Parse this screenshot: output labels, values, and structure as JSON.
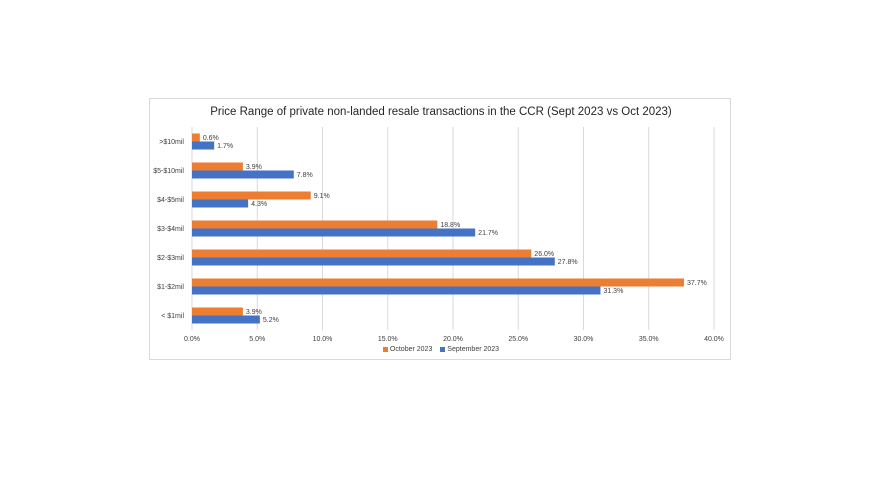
{
  "chart_data": {
    "type": "bar",
    "orientation": "horizontal",
    "title": "Price Range of private non-landed resale transactions in the CCR (Sept 2023 vs Oct 2023)",
    "categories": [
      ">$10mil",
      "$5-$10mil",
      "$4-$5mil",
      "$3-$4mil",
      "$2-$3mil",
      "$1-$2mil",
      "< $1mil"
    ],
    "series": [
      {
        "name": "October 2023",
        "color": "#ed7d31",
        "values": [
          0.6,
          3.9,
          9.1,
          18.8,
          26.0,
          37.7,
          3.9
        ],
        "labels": [
          "0.6%",
          "3.9%",
          "9.1%",
          "18.8%",
          "26.0%",
          "37.7%",
          "3.9%"
        ]
      },
      {
        "name": "September 2023",
        "color": "#4472c4",
        "values": [
          1.7,
          7.8,
          4.3,
          21.7,
          27.8,
          31.3,
          5.2
        ],
        "labels": [
          "1.7%",
          "7.8%",
          "4.3%",
          "21.7%",
          "27.8%",
          "31.3%",
          "5.2%"
        ]
      }
    ],
    "xlim": [
      0,
      40
    ],
    "xticks": [
      "0.0%",
      "5.0%",
      "10.0%",
      "15.0%",
      "20.0%",
      "25.0%",
      "30.0%",
      "35.0%",
      "40.0%"
    ],
    "xlabel": "",
    "ylabel": "",
    "grid": true,
    "legend_position": "bottom"
  }
}
